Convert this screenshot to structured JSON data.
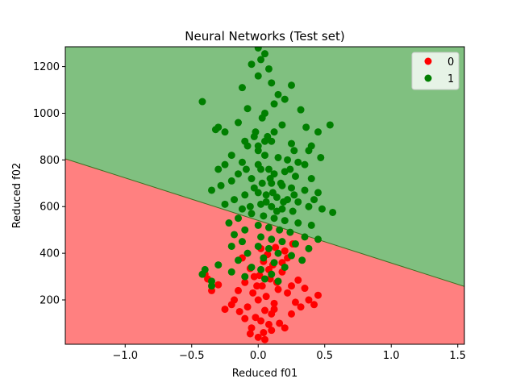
{
  "chart_data": {
    "type": "scatter",
    "title": "Neural Networks (Test set)",
    "xlabel": "Reduced f01",
    "ylabel": "Reduced f02",
    "xlim": [
      -1.45,
      1.55
    ],
    "ylim": [
      10,
      1285
    ],
    "xticks": [
      -1.0,
      -0.5,
      0.0,
      0.5,
      1.0,
      1.5
    ],
    "xtick_labels": [
      "−1.0",
      "−0.5",
      "0.0",
      "0.5",
      "1.0",
      "1.5"
    ],
    "yticks": [
      200,
      400,
      600,
      800,
      1000,
      1200
    ],
    "ytick_labels": [
      "200",
      "400",
      "600",
      "800",
      "1000",
      "1200"
    ],
    "grid": false,
    "legend_position": "top-right",
    "decision_boundary": {
      "points": [
        [
          -1.45,
          805
        ],
        [
          1.55,
          258
        ]
      ],
      "region_below_class": "0",
      "region_above_class": "1",
      "region_below_color": "#ff8080",
      "region_above_color": "#80c080"
    },
    "series": [
      {
        "name": "0",
        "color": "#ff0000",
        "points": [
          [
            0.0,
            40
          ],
          [
            0.04,
            60
          ],
          [
            -0.05,
            80
          ],
          [
            0.08,
            95
          ],
          [
            0.02,
            110
          ],
          [
            -0.02,
            125
          ],
          [
            0.1,
            140
          ],
          [
            0.05,
            155
          ],
          [
            -0.08,
            170
          ],
          [
            0.12,
            185
          ],
          [
            0.0,
            200
          ],
          [
            0.06,
            215
          ],
          [
            -0.04,
            230
          ],
          [
            0.15,
            245
          ],
          [
            0.03,
            260
          ],
          [
            -0.1,
            275
          ],
          [
            0.09,
            290
          ],
          [
            0.01,
            305
          ],
          [
            0.18,
            320
          ],
          [
            -0.06,
            335
          ],
          [
            0.11,
            350
          ],
          [
            0.04,
            365
          ],
          [
            -0.12,
            380
          ],
          [
            0.07,
            395
          ],
          [
            0.2,
            410
          ],
          [
            0.13,
            425
          ],
          [
            -0.03,
            300
          ],
          [
            0.25,
            260
          ],
          [
            0.3,
            285
          ],
          [
            0.35,
            250
          ],
          [
            0.38,
            200
          ],
          [
            0.42,
            180
          ],
          [
            0.45,
            220
          ],
          [
            0.22,
            230
          ],
          [
            -0.15,
            240
          ],
          [
            -0.18,
            200
          ],
          [
            -0.2,
            180
          ],
          [
            -0.25,
            160
          ],
          [
            -0.3,
            265
          ],
          [
            -0.35,
            240
          ],
          [
            -0.38,
            290
          ],
          [
            -0.4,
            310
          ],
          [
            -0.1,
            120
          ],
          [
            0.16,
            100
          ],
          [
            0.2,
            80
          ],
          [
            0.1,
            70
          ],
          [
            -0.06,
            55
          ],
          [
            0.05,
            30
          ],
          [
            0.12,
            160
          ],
          [
            0.25,
            140
          ],
          [
            0.28,
            190
          ],
          [
            0.32,
            170
          ],
          [
            -0.14,
            150
          ],
          [
            0.08,
            330
          ],
          [
            0.18,
            360
          ],
          [
            0.22,
            380
          ],
          [
            0.02,
            420
          ],
          [
            0.26,
            440
          ],
          [
            -0.01,
            260
          ],
          [
            0.14,
            275
          ]
        ]
      },
      {
        "name": "1",
        "color": "#007f00",
        "points": [
          [
            0.0,
            1280
          ],
          [
            0.05,
            1255
          ],
          [
            0.25,
            1120
          ],
          [
            -0.42,
            1050
          ],
          [
            0.02,
            1230
          ],
          [
            -0.05,
            1210
          ],
          [
            0.08,
            1190
          ],
          [
            0.0,
            1160
          ],
          [
            -0.12,
            1110
          ],
          [
            0.1,
            1130
          ],
          [
            0.15,
            1080
          ],
          [
            0.2,
            1060
          ],
          [
            0.32,
            1015
          ],
          [
            0.12,
            1040
          ],
          [
            -0.08,
            1020
          ],
          [
            0.05,
            1000
          ],
          [
            0.03,
            980
          ],
          [
            -0.15,
            960
          ],
          [
            -0.3,
            940
          ],
          [
            -0.32,
            930
          ],
          [
            -0.25,
            920
          ],
          [
            0.18,
            950
          ],
          [
            0.36,
            940
          ],
          [
            0.45,
            920
          ],
          [
            0.54,
            950
          ],
          [
            -0.03,
            900
          ],
          [
            0.1,
            880
          ],
          [
            0.25,
            870
          ],
          [
            0.4,
            860
          ],
          [
            0.38,
            840
          ],
          [
            0.27,
            840
          ],
          [
            0.47,
            810
          ],
          [
            -0.2,
            820
          ],
          [
            -0.08,
            860
          ],
          [
            0.0,
            840
          ],
          [
            0.05,
            820
          ],
          [
            0.15,
            810
          ],
          [
            0.22,
            800
          ],
          [
            0.3,
            790
          ],
          [
            0.35,
            780
          ],
          [
            -0.12,
            790
          ],
          [
            -0.25,
            780
          ],
          [
            -0.3,
            760
          ],
          [
            0.0,
            780
          ],
          [
            0.08,
            760
          ],
          [
            0.12,
            740
          ],
          [
            0.2,
            750
          ],
          [
            0.28,
            730
          ],
          [
            0.4,
            720
          ],
          [
            -0.15,
            740
          ],
          [
            -0.05,
            720
          ],
          [
            0.03,
            700
          ],
          [
            0.1,
            700
          ],
          [
            0.18,
            690
          ],
          [
            0.25,
            680
          ],
          [
            0.35,
            670
          ],
          [
            0.45,
            660
          ],
          [
            -0.2,
            710
          ],
          [
            -0.28,
            690
          ],
          [
            -0.35,
            670
          ],
          [
            0.0,
            660
          ],
          [
            0.06,
            650
          ],
          [
            0.14,
            640
          ],
          [
            0.22,
            630
          ],
          [
            0.3,
            620
          ],
          [
            0.42,
            630
          ],
          [
            -0.1,
            650
          ],
          [
            -0.18,
            630
          ],
          [
            -0.25,
            610
          ],
          [
            0.02,
            610
          ],
          [
            0.1,
            600
          ],
          [
            0.18,
            590
          ],
          [
            0.26,
            580
          ],
          [
            0.38,
            600
          ],
          [
            0.48,
            590
          ],
          [
            0.56,
            575
          ],
          [
            -0.12,
            590
          ],
          [
            -0.05,
            570
          ],
          [
            0.04,
            560
          ],
          [
            0.12,
            550
          ],
          [
            0.2,
            540
          ],
          [
            0.3,
            530
          ],
          [
            0.4,
            520
          ],
          [
            -0.15,
            550
          ],
          [
            -0.22,
            530
          ],
          [
            0.0,
            520
          ],
          [
            0.08,
            510
          ],
          [
            0.16,
            500
          ],
          [
            0.24,
            490
          ],
          [
            0.35,
            470
          ],
          [
            0.45,
            460
          ],
          [
            -0.1,
            500
          ],
          [
            -0.18,
            480
          ],
          [
            0.02,
            470
          ],
          [
            0.1,
            460
          ],
          [
            0.18,
            450
          ],
          [
            0.28,
            440
          ],
          [
            0.38,
            420
          ],
          [
            -0.12,
            450
          ],
          [
            -0.2,
            430
          ],
          [
            0.0,
            430
          ],
          [
            0.08,
            420
          ],
          [
            0.15,
            400
          ],
          [
            0.25,
            390
          ],
          [
            0.33,
            370
          ],
          [
            -0.08,
            400
          ],
          [
            -0.15,
            370
          ],
          [
            0.04,
            380
          ],
          [
            0.12,
            360
          ],
          [
            0.2,
            340
          ],
          [
            -0.05,
            340
          ],
          [
            -0.2,
            320
          ],
          [
            -0.3,
            350
          ],
          [
            -0.4,
            330
          ],
          [
            -0.42,
            310
          ],
          [
            -0.35,
            280
          ],
          [
            0.02,
            330
          ],
          [
            0.1,
            310
          ],
          [
            -0.1,
            300
          ],
          [
            0.05,
            290
          ],
          [
            0.15,
            280
          ],
          [
            -0.35,
            260
          ],
          [
            0.0,
            860
          ],
          [
            0.05,
            880
          ],
          [
            -0.02,
            920
          ],
          [
            0.07,
            900
          ],
          [
            0.12,
            920
          ],
          [
            -0.1,
            880
          ],
          [
            0.02,
            760
          ],
          [
            0.09,
            720
          ],
          [
            -0.03,
            680
          ],
          [
            0.06,
            620
          ],
          [
            0.14,
            580
          ],
          [
            -0.06,
            600
          ],
          [
            0.11,
            660
          ],
          [
            0.17,
            700
          ],
          [
            0.24,
            760
          ],
          [
            -0.09,
            760
          ],
          [
            0.19,
            620
          ],
          [
            0.27,
            650
          ]
        ]
      }
    ]
  }
}
